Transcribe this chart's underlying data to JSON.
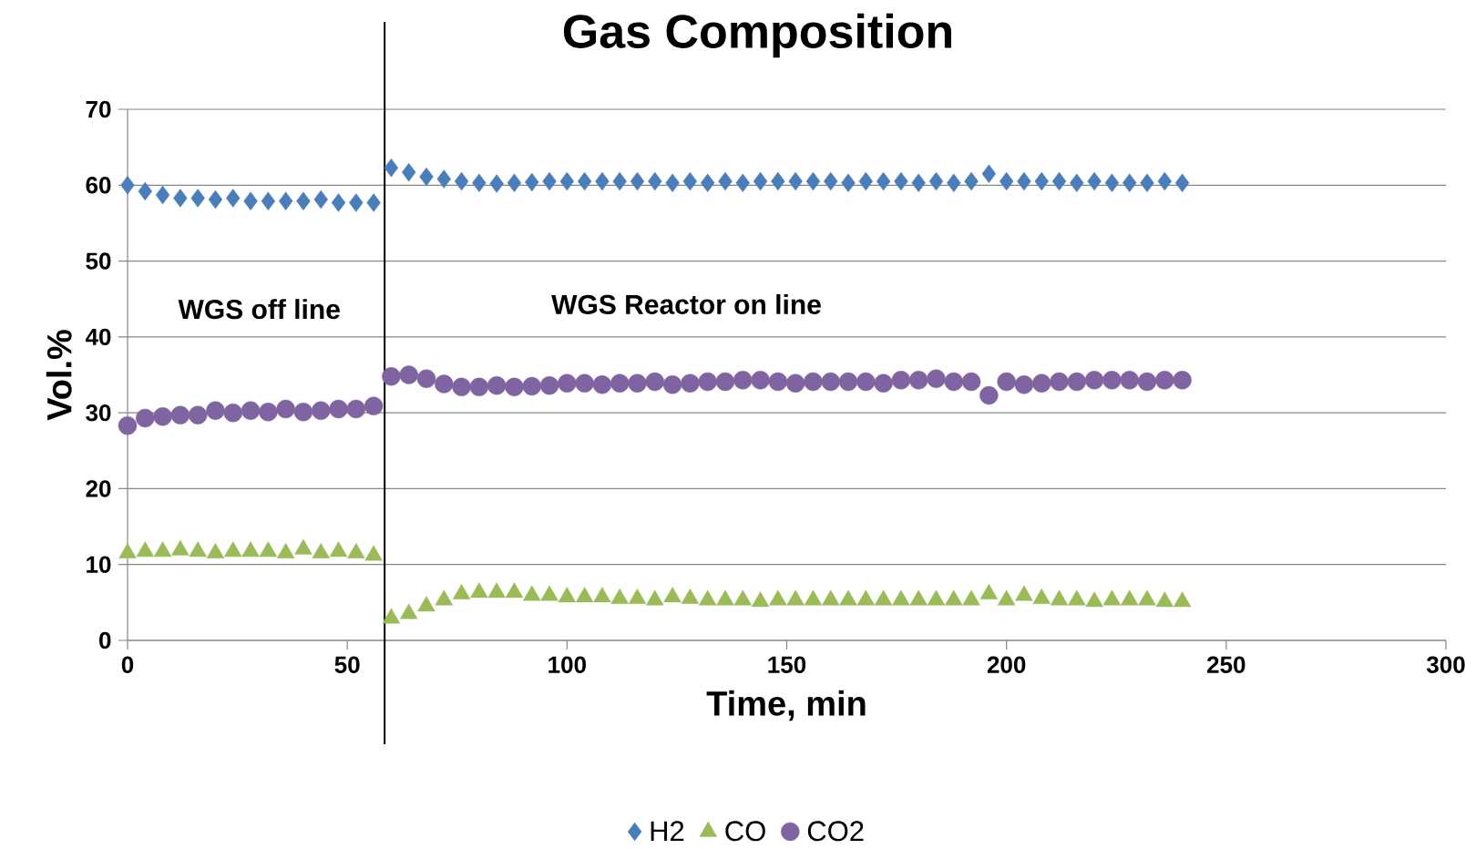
{
  "chart_data": {
    "type": "scatter",
    "title": "Gas Composition",
    "xlabel": "Time, min",
    "ylabel": "Vol.%",
    "x": [
      0,
      4,
      8,
      12,
      16,
      20,
      24,
      28,
      32,
      36,
      40,
      44,
      48,
      52,
      56,
      60,
      64,
      68,
      72,
      76,
      80,
      84,
      88,
      92,
      96,
      100,
      104,
      108,
      112,
      116,
      120,
      124,
      128,
      132,
      136,
      140,
      144,
      148,
      152,
      156,
      160,
      164,
      168,
      172,
      176,
      180,
      184,
      188,
      192,
      196,
      200,
      204,
      208,
      212,
      216,
      220,
      224,
      228,
      232,
      236,
      240
    ],
    "series": [
      {
        "name": "H2",
        "color": "#4a7ebb",
        "marker": "diamond",
        "values": [
          60,
          59.2,
          58.7,
          58.3,
          58.3,
          58.1,
          58.3,
          57.9,
          57.9,
          57.9,
          57.9,
          58.1,
          57.7,
          57.7,
          57.7,
          62.3,
          61.7,
          61.1,
          60.8,
          60.5,
          60.3,
          60.2,
          60.3,
          60.4,
          60.5,
          60.5,
          60.5,
          60.5,
          60.5,
          60.5,
          60.5,
          60.3,
          60.5,
          60.3,
          60.5,
          60.3,
          60.5,
          60.5,
          60.5,
          60.5,
          60.5,
          60.3,
          60.5,
          60.5,
          60.5,
          60.3,
          60.5,
          60.3,
          60.5,
          61.5,
          60.5,
          60.5,
          60.5,
          60.5,
          60.3,
          60.5,
          60.3,
          60.3,
          60.3,
          60.5,
          60.3
        ]
      },
      {
        "name": "CO",
        "color": "#9bbb59",
        "marker": "triangle",
        "values": [
          11.5,
          11.7,
          11.7,
          11.9,
          11.7,
          11.5,
          11.7,
          11.7,
          11.7,
          11.5,
          12,
          11.5,
          11.7,
          11.5,
          11.2,
          2.9,
          3.5,
          4.5,
          5.3,
          6.1,
          6.3,
          6.3,
          6.3,
          5.9,
          5.9,
          5.7,
          5.7,
          5.7,
          5.5,
          5.5,
          5.3,
          5.7,
          5.5,
          5.3,
          5.3,
          5.3,
          5.1,
          5.3,
          5.3,
          5.3,
          5.3,
          5.3,
          5.3,
          5.3,
          5.3,
          5.3,
          5.3,
          5.3,
          5.3,
          6.1,
          5.3,
          5.9,
          5.5,
          5.3,
          5.3,
          5.1,
          5.3,
          5.3,
          5.3,
          5.1,
          5.1
        ]
      },
      {
        "name": "CO2",
        "color": "#8064a2",
        "marker": "circle",
        "values": [
          28.3,
          29.3,
          29.5,
          29.7,
          29.7,
          30.3,
          30,
          30.3,
          30.1,
          30.5,
          30.1,
          30.3,
          30.5,
          30.5,
          30.9,
          34.8,
          35,
          34.5,
          33.8,
          33.4,
          33.4,
          33.6,
          33.4,
          33.5,
          33.6,
          33.9,
          33.9,
          33.7,
          33.9,
          33.9,
          34.1,
          33.7,
          33.9,
          34.1,
          34.1,
          34.3,
          34.3,
          34.1,
          33.9,
          34.1,
          34.1,
          34.1,
          34.1,
          33.9,
          34.3,
          34.3,
          34.5,
          34.1,
          34.1,
          32.3,
          34.1,
          33.7,
          33.9,
          34.1,
          34.1,
          34.3,
          34.3,
          34.3,
          34.1,
          34.3,
          34.3
        ]
      }
    ],
    "xlim": [
      0,
      300
    ],
    "xticks": [
      0,
      50,
      100,
      150,
      200,
      250,
      300
    ],
    "ylim": [
      0,
      70
    ],
    "yticks": [
      0,
      10,
      20,
      30,
      40,
      50,
      60,
      70
    ],
    "grid": "y",
    "legend": "bottom",
    "ref_lines": [
      {
        "axis": "x",
        "value": 58.5,
        "color": "#000000"
      }
    ],
    "annotations": [
      "WGS off line",
      "WGS Reactor on line"
    ]
  }
}
